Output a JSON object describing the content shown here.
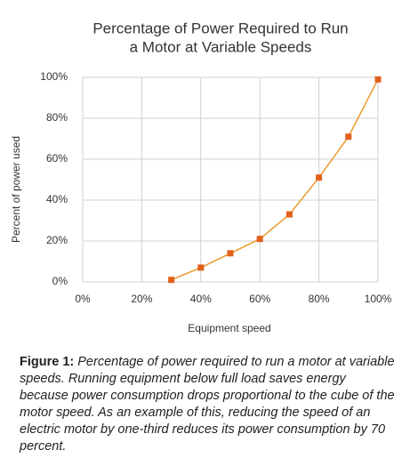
{
  "chart_data": {
    "type": "line",
    "title": [
      "Percentage of Power Required to Run",
      "a Motor at Variable Speeds"
    ],
    "xlabel": "Equipment speed",
    "ylabel": "Percent of power used",
    "x": [
      30,
      40,
      50,
      60,
      70,
      80,
      90,
      100
    ],
    "values": [
      1,
      7,
      14,
      21,
      33,
      51,
      71,
      99
    ],
    "line_color": "#eb9a2e",
    "marker_color": "#e2601b",
    "xlim": [
      0,
      100
    ],
    "ylim": [
      0,
      100
    ],
    "xticks": [
      {
        "value": 0,
        "label": "0%"
      },
      {
        "value": 20,
        "label": "20%"
      },
      {
        "value": 40,
        "label": "40%"
      },
      {
        "value": 60,
        "label": "60%"
      },
      {
        "value": 80,
        "label": "80%"
      },
      {
        "value": 100,
        "label": "100%"
      }
    ],
    "yticks": [
      {
        "value": 0,
        "label": "0%"
      },
      {
        "value": 20,
        "label": "20%"
      },
      {
        "value": 40,
        "label": "40%"
      },
      {
        "value": 60,
        "label": "60%"
      },
      {
        "value": 80,
        "label": "80%"
      },
      {
        "value": 100,
        "label": "100%"
      }
    ],
    "grid": true
  },
  "caption": {
    "label": "Figure 1:",
    "text": "Percentage of power required to run a motor at variable speeds. Running equipment below full load saves energy because power consumption drops proportional to the cube of the motor speed. As an example of this, reducing the speed of an electric motor by one-third reduces its power consumption by 70 percent."
  }
}
